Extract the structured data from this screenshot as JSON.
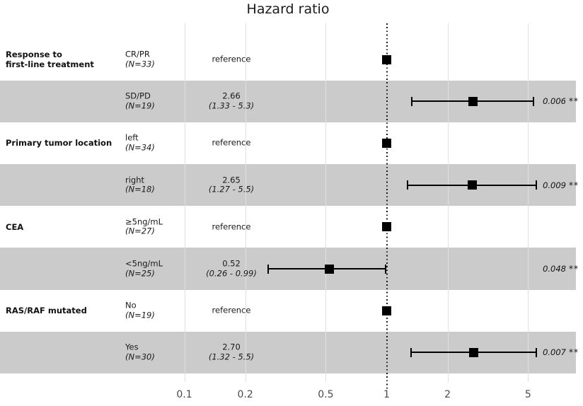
{
  "chart_data": {
    "type": "forest",
    "title": "Hazard ratio",
    "x_scale": "log10",
    "axis": {
      "ticks": [
        "0.1",
        "0.2",
        "0.5",
        "1",
        "2",
        "5"
      ],
      "tick_values": [
        0.1,
        0.2,
        0.5,
        1,
        2,
        5
      ],
      "xlim": [
        0.08,
        9
      ],
      "reference_line": 1,
      "grid": "vertical-only"
    },
    "legend": "none",
    "colors": {
      "band": "#cbcbcb",
      "gridline": "#e0e0e0",
      "marker": "#000000",
      "text": "#1a1a1a",
      "axis_text": "#4a4a4a"
    },
    "rows": [
      {
        "group": "Response to\nfirst-line treatment",
        "level": "CR/PR",
        "n": "(N=33)",
        "estimate_label": "reference",
        "hr": 1,
        "ci_low": null,
        "ci_high": null,
        "p": "",
        "stars": "",
        "shaded": false
      },
      {
        "group": "",
        "level": "SD/PD",
        "n": "(N=19)",
        "estimate_label": "2.66",
        "ci_label": "(1.33 - 5.3)",
        "hr": 2.66,
        "ci_low": 1.33,
        "ci_high": 5.3,
        "p": "0.006",
        "stars": "**",
        "shaded": true
      },
      {
        "group": "Primary tumor location",
        "level": "left",
        "n": "(N=34)",
        "estimate_label": "reference",
        "hr": 1,
        "ci_low": null,
        "ci_high": null,
        "p": "",
        "stars": "",
        "shaded": false
      },
      {
        "group": "",
        "level": "right",
        "n": "(N=18)",
        "estimate_label": "2.65",
        "ci_label": "(1.27 - 5.5)",
        "hr": 2.65,
        "ci_low": 1.27,
        "ci_high": 5.5,
        "p": "0.009",
        "stars": "**",
        "shaded": true
      },
      {
        "group": "CEA",
        "level": "≥5ng/mL",
        "n": "(N=27)",
        "estimate_label": "reference",
        "hr": 1,
        "ci_low": null,
        "ci_high": null,
        "p": "",
        "stars": "",
        "shaded": false
      },
      {
        "group": "",
        "level": "<5ng/mL",
        "n": "(N=25)",
        "estimate_label": "0.52",
        "ci_label": "(0.26 - 0.99)",
        "hr": 0.52,
        "ci_low": 0.26,
        "ci_high": 0.99,
        "p": "0.048",
        "stars": "**",
        "shaded": true
      },
      {
        "group": "RAS/RAF mutated",
        "level": "No",
        "n": "(N=19)",
        "estimate_label": "reference",
        "hr": 1,
        "ci_low": null,
        "ci_high": null,
        "p": "",
        "stars": "",
        "shaded": false
      },
      {
        "group": "",
        "level": "Yes",
        "n": "(N=30)",
        "estimate_label": "2.70",
        "ci_label": "(1.32 - 5.5)",
        "hr": 2.7,
        "ci_low": 1.32,
        "ci_high": 5.5,
        "p": "0.007",
        "stars": "**",
        "shaded": true
      }
    ]
  }
}
